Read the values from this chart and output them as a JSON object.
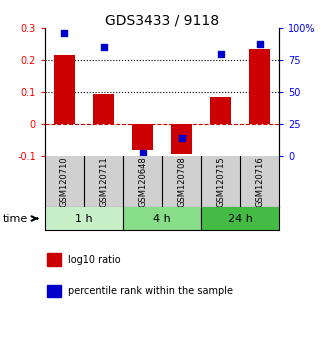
{
  "title": "GDS3433 / 9118",
  "samples": [
    "GSM120710",
    "GSM120711",
    "GSM120648",
    "GSM120708",
    "GSM120715",
    "GSM120716"
  ],
  "log10_ratio": [
    0.215,
    0.095,
    -0.082,
    -0.095,
    0.085,
    0.235
  ],
  "percentile_rank": [
    96,
    85,
    2,
    14,
    80,
    88
  ],
  "bar_color": "#cc0000",
  "dot_color": "#0000cc",
  "ylim_left": [
    -0.1,
    0.3
  ],
  "ylim_right": [
    0,
    100
  ],
  "yticks_left": [
    -0.1,
    0.0,
    0.1,
    0.2,
    0.3
  ],
  "yticks_right": [
    0,
    25,
    50,
    75,
    100
  ],
  "hlines_dotted": [
    0.1,
    0.2
  ],
  "hline_dashed_color": "#cc0000",
  "time_groups": [
    {
      "label": "1 h",
      "indices": [
        0,
        1
      ],
      "color": "#c8f0c8"
    },
    {
      "label": "4 h",
      "indices": [
        2,
        3
      ],
      "color": "#88dd88"
    },
    {
      "label": "24 h",
      "indices": [
        4,
        5
      ],
      "color": "#44bb44"
    }
  ],
  "bar_width": 0.55,
  "dot_size": 25,
  "legend_items": [
    {
      "label": "log10 ratio",
      "color": "#cc0000"
    },
    {
      "label": "percentile rank within the sample",
      "color": "#0000cc"
    }
  ],
  "title_fontsize": 10,
  "tick_fontsize": 7,
  "sample_fontsize": 6,
  "time_fontsize": 8,
  "legend_fontsize": 7,
  "gray_color": "#d0d0d0"
}
